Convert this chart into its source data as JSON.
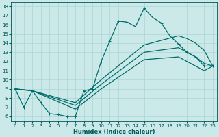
{
  "xlabel": "Humidex (Indice chaleur)",
  "xlim": [
    -0.5,
    23.5
  ],
  "ylim": [
    5.5,
    18.5
  ],
  "xticks": [
    0,
    1,
    2,
    3,
    4,
    5,
    6,
    7,
    8,
    9,
    10,
    11,
    12,
    13,
    14,
    15,
    16,
    17,
    18,
    19,
    20,
    21,
    22,
    23
  ],
  "yticks": [
    6,
    7,
    8,
    9,
    10,
    11,
    12,
    13,
    14,
    15,
    16,
    17,
    18
  ],
  "background_color": "#cce9e9",
  "grid_color": "#aad4d4",
  "line_color": "#006b6b",
  "lines": [
    {
      "x": [
        0,
        1,
        2,
        3,
        4,
        5,
        6,
        7,
        8,
        9,
        10,
        11,
        12,
        13,
        14,
        15,
        16,
        17,
        18,
        19,
        20,
        21,
        22,
        23
      ],
      "y": [
        9.0,
        7.0,
        8.8,
        7.5,
        6.3,
        6.2,
        6.0,
        6.0,
        8.8,
        9.0,
        12.0,
        14.2,
        16.4,
        16.3,
        15.8,
        17.8,
        16.8,
        16.2,
        14.8,
        13.9,
        13.0,
        12.5,
        11.5,
        11.5
      ],
      "marker": "+"
    },
    {
      "x": [
        0,
        2,
        7,
        10,
        15,
        19,
        20,
        21,
        22,
        23
      ],
      "y": [
        9.0,
        8.8,
        7.5,
        10.0,
        13.8,
        14.8,
        14.5,
        14.0,
        13.2,
        11.5
      ],
      "marker": null
    },
    {
      "x": [
        0,
        2,
        7,
        10,
        15,
        19,
        20,
        21,
        22,
        23
      ],
      "y": [
        9.0,
        8.8,
        7.2,
        9.5,
        13.0,
        13.5,
        13.0,
        12.5,
        11.8,
        11.5
      ],
      "marker": null
    },
    {
      "x": [
        0,
        2,
        7,
        10,
        15,
        19,
        20,
        21,
        22,
        23
      ],
      "y": [
        9.0,
        8.8,
        6.8,
        9.0,
        12.2,
        12.5,
        12.0,
        11.5,
        11.0,
        11.5
      ],
      "marker": null
    }
  ],
  "linewidth": 0.9,
  "markersize": 3,
  "font_color": "#005555",
  "xlabel_fontsize": 6,
  "tick_fontsize": 5
}
